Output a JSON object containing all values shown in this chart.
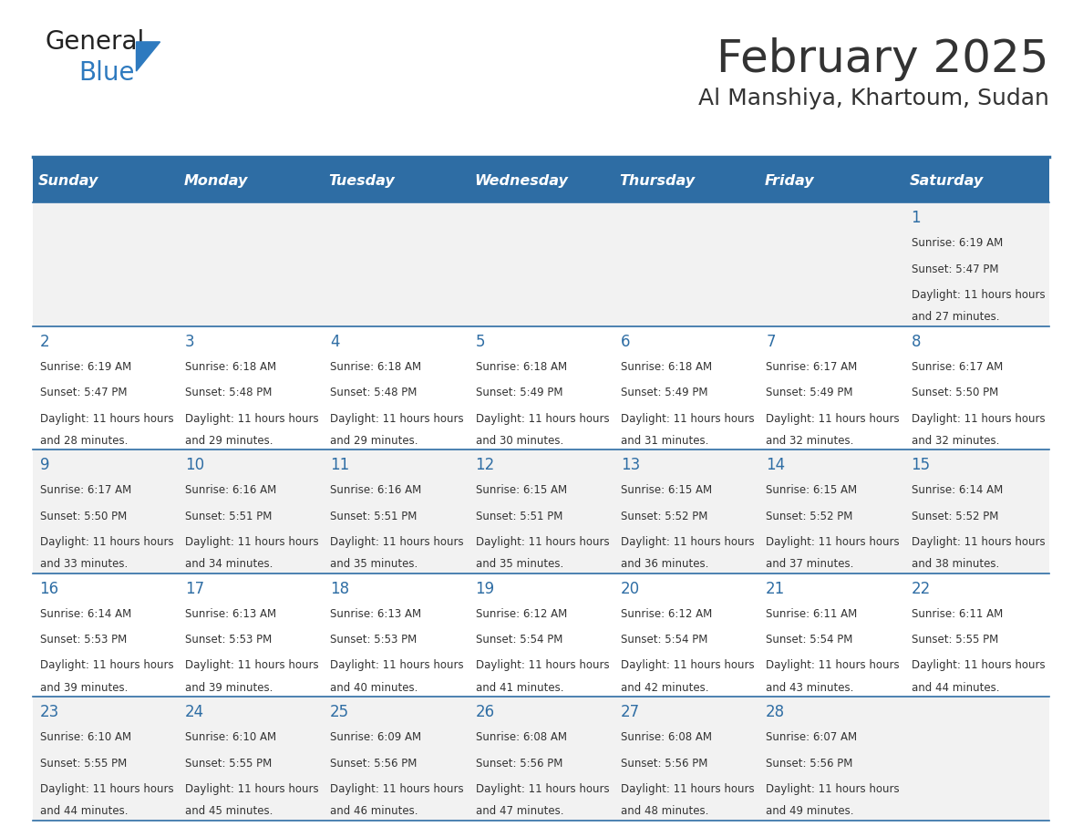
{
  "title": "February 2025",
  "subtitle": "Al Manshiya, Khartoum, Sudan",
  "days_of_week": [
    "Sunday",
    "Monday",
    "Tuesday",
    "Wednesday",
    "Thursday",
    "Friday",
    "Saturday"
  ],
  "header_bg": "#2e6da4",
  "header_text": "#ffffff",
  "row_bg_odd": "#f2f2f2",
  "row_bg_even": "#ffffff",
  "cell_text_color": "#333333",
  "day_num_color": "#2e6da4",
  "separator_color": "#2e6da4",
  "calendar_data": [
    [
      null,
      null,
      null,
      null,
      null,
      null,
      {
        "day": 1,
        "sunrise": "6:19 AM",
        "sunset": "5:47 PM",
        "daylight": "11 hours and 27 minutes."
      }
    ],
    [
      {
        "day": 2,
        "sunrise": "6:19 AM",
        "sunset": "5:47 PM",
        "daylight": "11 hours and 28 minutes."
      },
      {
        "day": 3,
        "sunrise": "6:18 AM",
        "sunset": "5:48 PM",
        "daylight": "11 hours and 29 minutes."
      },
      {
        "day": 4,
        "sunrise": "6:18 AM",
        "sunset": "5:48 PM",
        "daylight": "11 hours and 29 minutes."
      },
      {
        "day": 5,
        "sunrise": "6:18 AM",
        "sunset": "5:49 PM",
        "daylight": "11 hours and 30 minutes."
      },
      {
        "day": 6,
        "sunrise": "6:18 AM",
        "sunset": "5:49 PM",
        "daylight": "11 hours and 31 minutes."
      },
      {
        "day": 7,
        "sunrise": "6:17 AM",
        "sunset": "5:49 PM",
        "daylight": "11 hours and 32 minutes."
      },
      {
        "day": 8,
        "sunrise": "6:17 AM",
        "sunset": "5:50 PM",
        "daylight": "11 hours and 32 minutes."
      }
    ],
    [
      {
        "day": 9,
        "sunrise": "6:17 AM",
        "sunset": "5:50 PM",
        "daylight": "11 hours and 33 minutes."
      },
      {
        "day": 10,
        "sunrise": "6:16 AM",
        "sunset": "5:51 PM",
        "daylight": "11 hours and 34 minutes."
      },
      {
        "day": 11,
        "sunrise": "6:16 AM",
        "sunset": "5:51 PM",
        "daylight": "11 hours and 35 minutes."
      },
      {
        "day": 12,
        "sunrise": "6:15 AM",
        "sunset": "5:51 PM",
        "daylight": "11 hours and 35 minutes."
      },
      {
        "day": 13,
        "sunrise": "6:15 AM",
        "sunset": "5:52 PM",
        "daylight": "11 hours and 36 minutes."
      },
      {
        "day": 14,
        "sunrise": "6:15 AM",
        "sunset": "5:52 PM",
        "daylight": "11 hours and 37 minutes."
      },
      {
        "day": 15,
        "sunrise": "6:14 AM",
        "sunset": "5:52 PM",
        "daylight": "11 hours and 38 minutes."
      }
    ],
    [
      {
        "day": 16,
        "sunrise": "6:14 AM",
        "sunset": "5:53 PM",
        "daylight": "11 hours and 39 minutes."
      },
      {
        "day": 17,
        "sunrise": "6:13 AM",
        "sunset": "5:53 PM",
        "daylight": "11 hours and 39 minutes."
      },
      {
        "day": 18,
        "sunrise": "6:13 AM",
        "sunset": "5:53 PM",
        "daylight": "11 hours and 40 minutes."
      },
      {
        "day": 19,
        "sunrise": "6:12 AM",
        "sunset": "5:54 PM",
        "daylight": "11 hours and 41 minutes."
      },
      {
        "day": 20,
        "sunrise": "6:12 AM",
        "sunset": "5:54 PM",
        "daylight": "11 hours and 42 minutes."
      },
      {
        "day": 21,
        "sunrise": "6:11 AM",
        "sunset": "5:54 PM",
        "daylight": "11 hours and 43 minutes."
      },
      {
        "day": 22,
        "sunrise": "6:11 AM",
        "sunset": "5:55 PM",
        "daylight": "11 hours and 44 minutes."
      }
    ],
    [
      {
        "day": 23,
        "sunrise": "6:10 AM",
        "sunset": "5:55 PM",
        "daylight": "11 hours and 44 minutes."
      },
      {
        "day": 24,
        "sunrise": "6:10 AM",
        "sunset": "5:55 PM",
        "daylight": "11 hours and 45 minutes."
      },
      {
        "day": 25,
        "sunrise": "6:09 AM",
        "sunset": "5:56 PM",
        "daylight": "11 hours and 46 minutes."
      },
      {
        "day": 26,
        "sunrise": "6:08 AM",
        "sunset": "5:56 PM",
        "daylight": "11 hours and 47 minutes."
      },
      {
        "day": 27,
        "sunrise": "6:08 AM",
        "sunset": "5:56 PM",
        "daylight": "11 hours and 48 minutes."
      },
      {
        "day": 28,
        "sunrise": "6:07 AM",
        "sunset": "5:56 PM",
        "daylight": "11 hours and 49 minutes."
      },
      null
    ]
  ],
  "logo_text_general": "General",
  "logo_text_blue": "Blue",
  "logo_color_general": "#222222",
  "logo_color_blue": "#2e7abf"
}
